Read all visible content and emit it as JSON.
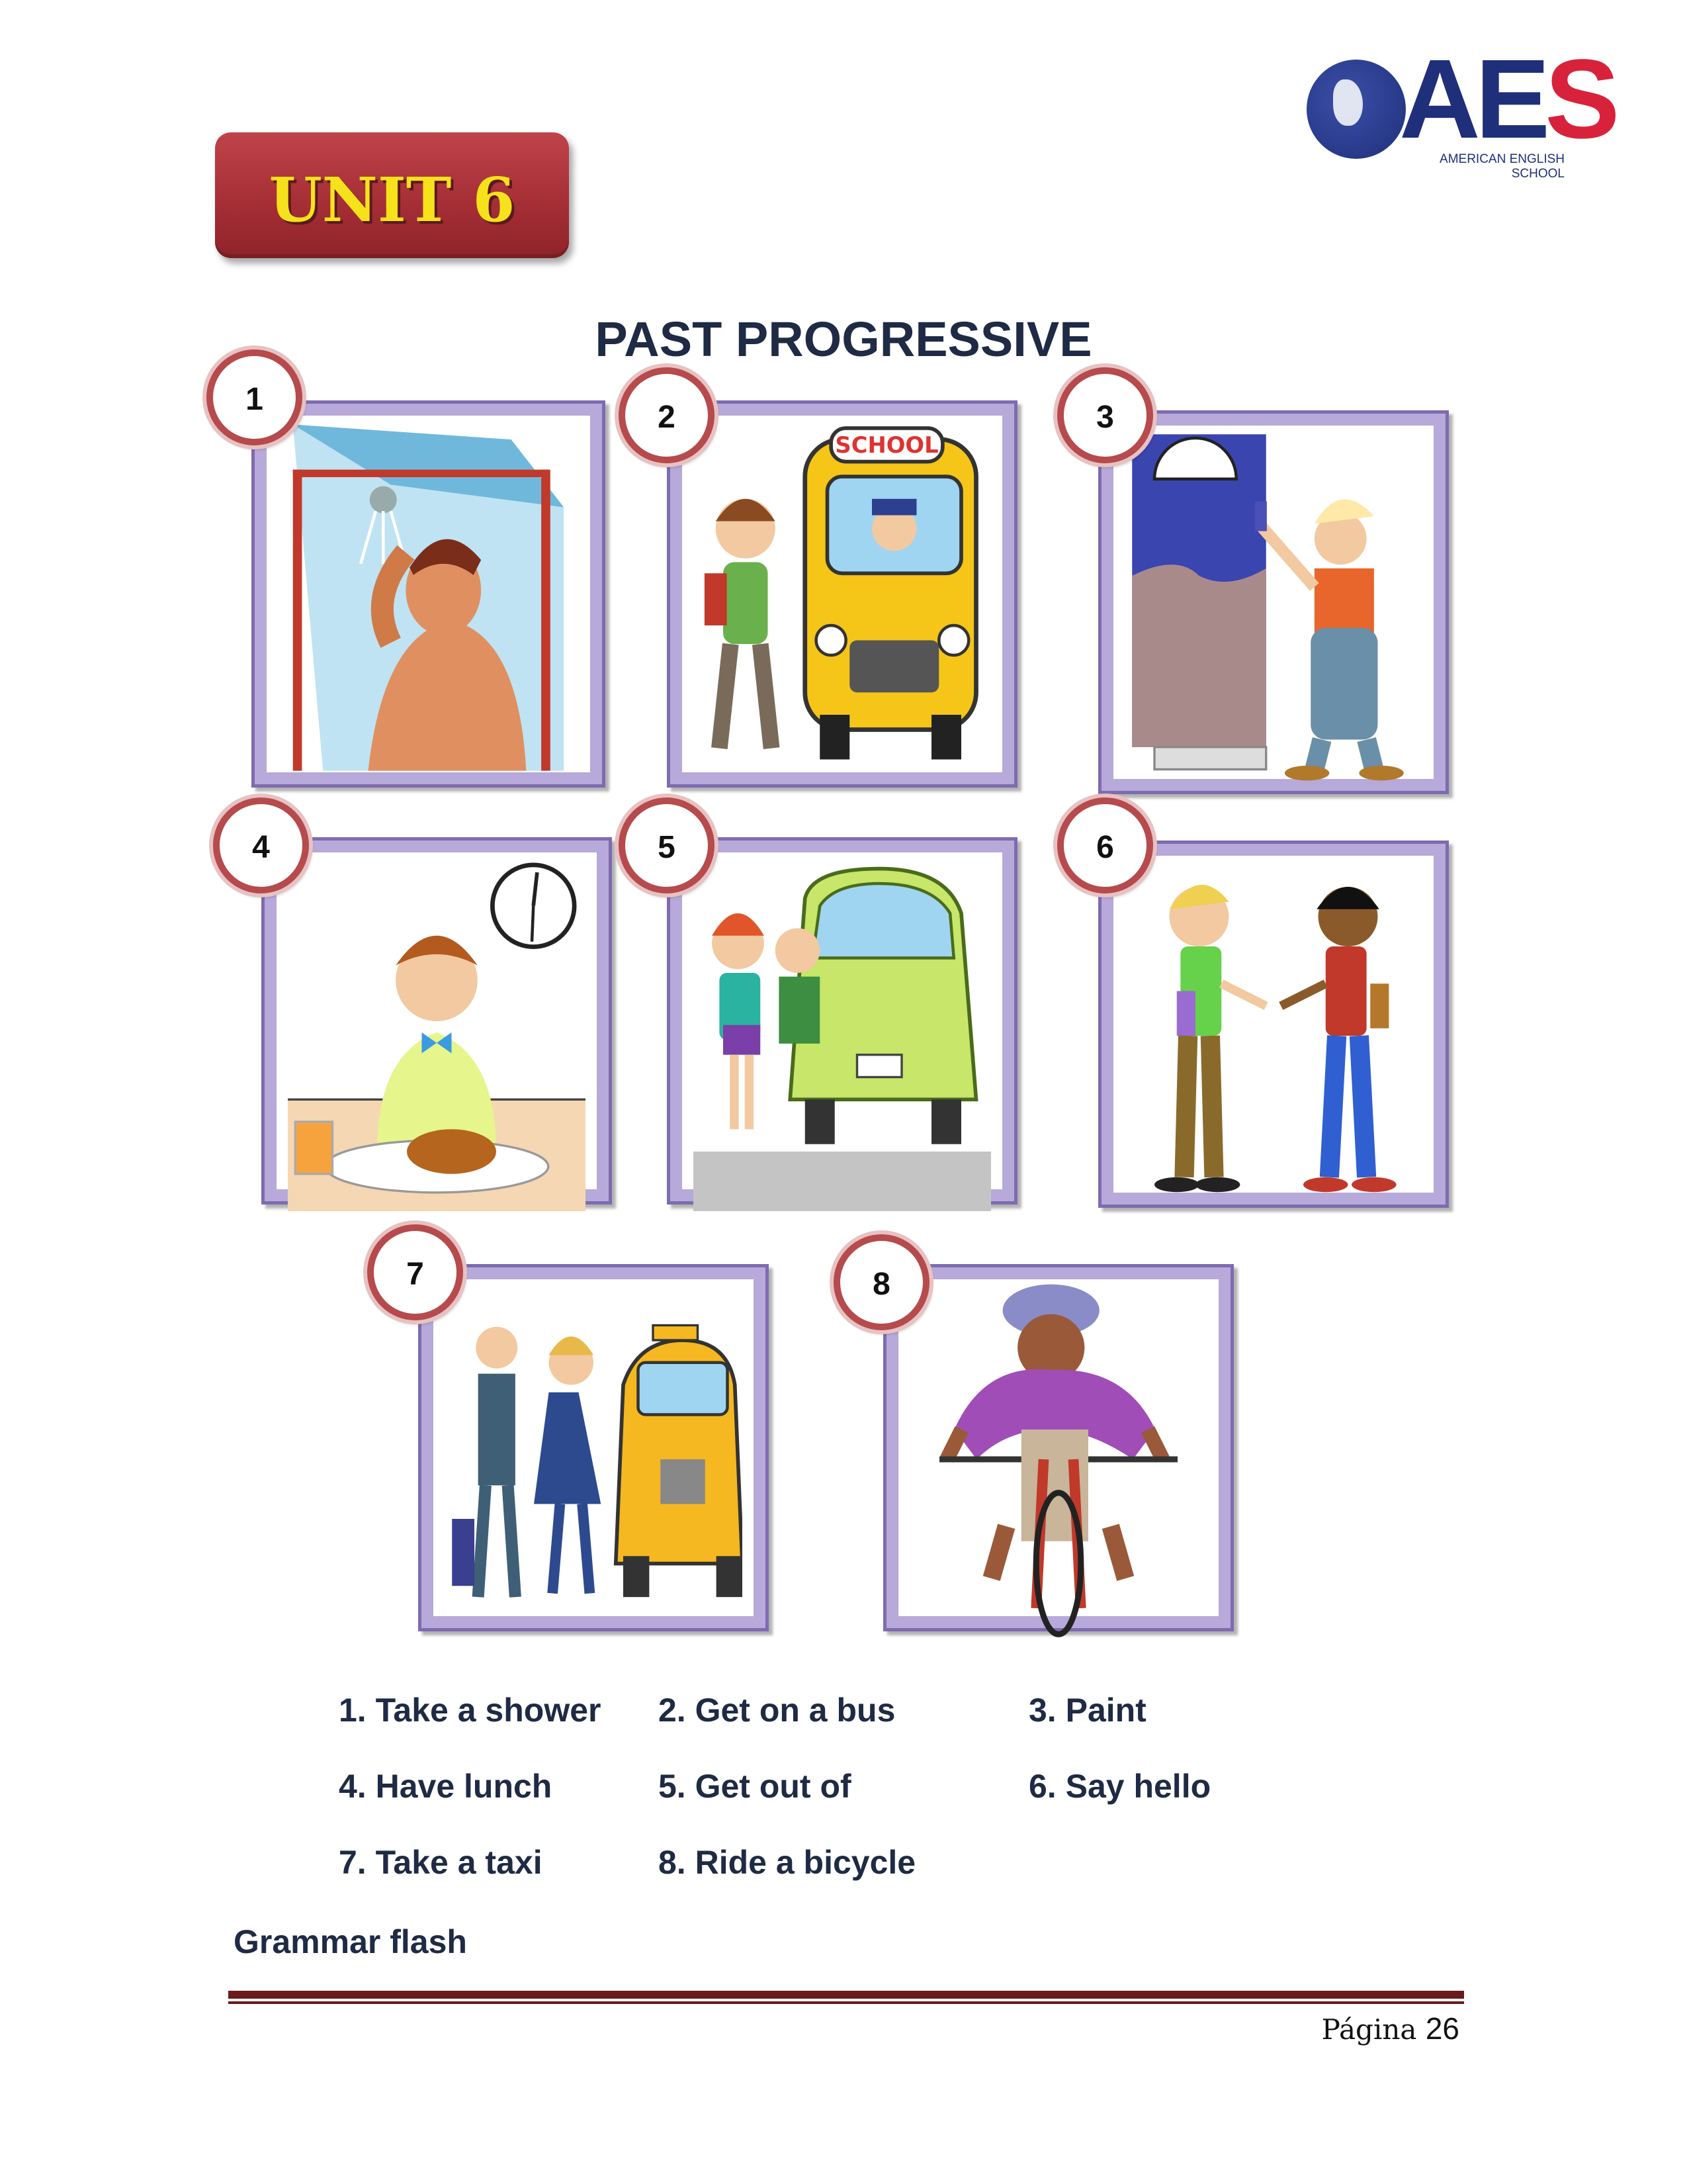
{
  "logo": {
    "brand_a": "A",
    "brand_e": "E",
    "brand_s": "S",
    "line1": "AMERICAN ENGLISH",
    "line2": "SCHOOL"
  },
  "unit_label": "UNIT 6",
  "title": "PAST PROGRESSIVE",
  "pictures": [
    {
      "number": "1",
      "subject": "shower"
    },
    {
      "number": "2",
      "subject": "school-bus"
    },
    {
      "number": "3",
      "subject": "painting-door"
    },
    {
      "number": "4",
      "subject": "lunch-clock"
    },
    {
      "number": "5",
      "subject": "car"
    },
    {
      "number": "6",
      "subject": "greeting"
    },
    {
      "number": "7",
      "subject": "taxi"
    },
    {
      "number": "8",
      "subject": "bicycle"
    }
  ],
  "vocabulary": [
    "1.  Take a shower",
    "2.  Get on a bus",
    "3.  Paint",
    "4.  Have lunch",
    "5.  Get out of",
    "6.  Say hello",
    "7.  Take a taxi",
    "8.  Ride a bicycle"
  ],
  "grammar_heading": "Grammar flash",
  "footer": {
    "page_label": "Página",
    "page_number": "26"
  },
  "colors": {
    "title": "#1f2a44",
    "badge": "#a62f36",
    "badge_text": "#f5e21a",
    "frame": "#b7a9d9",
    "number_ring": "#b64a4c",
    "rule": "#6a1b1b"
  }
}
